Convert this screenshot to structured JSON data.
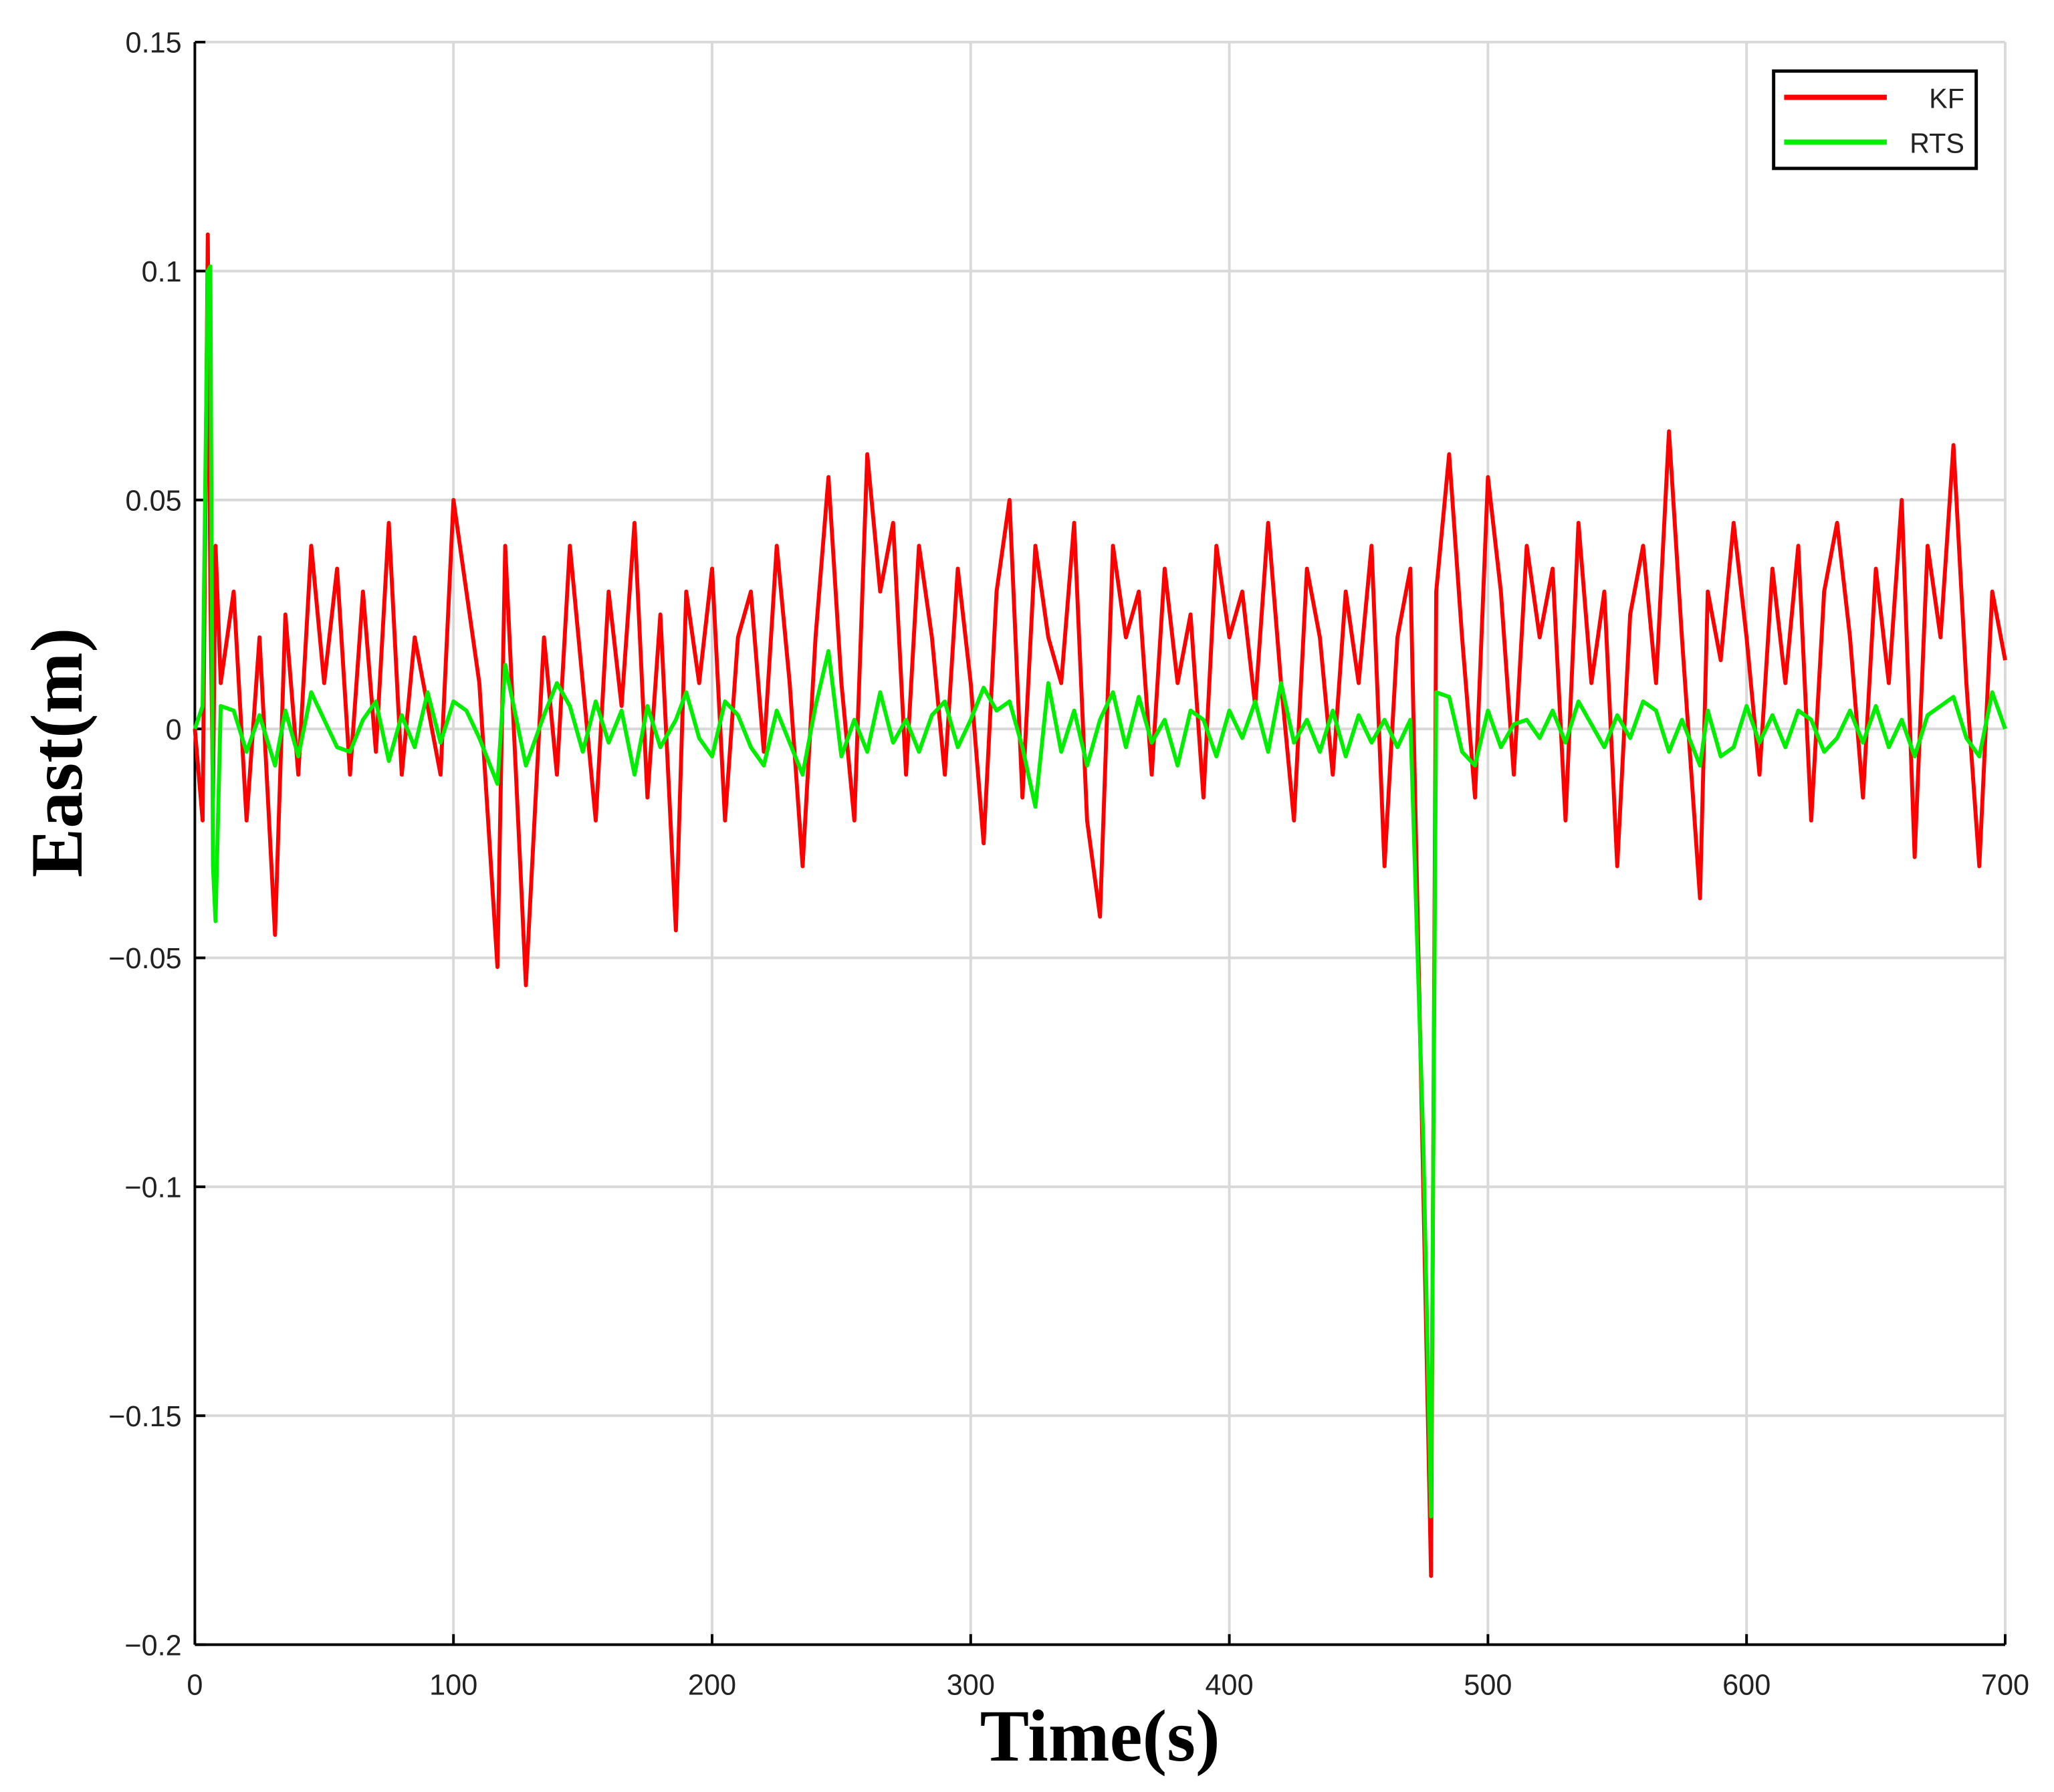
{
  "chart_data": {
    "type": "line",
    "xlabel": "Time(s)",
    "ylabel": "East(m)",
    "x": [
      0,
      3,
      5,
      6,
      7,
      8,
      10,
      15,
      20,
      25,
      31,
      35,
      40,
      45,
      50,
      55,
      60,
      65,
      70,
      75,
      80,
      85,
      90,
      95,
      100,
      105,
      110,
      117,
      120,
      128,
      135,
      140,
      145,
      150,
      155,
      160,
      165,
      170,
      175,
      180,
      186,
      190,
      195,
      200,
      205,
      210,
      215,
      220,
      225,
      230,
      235,
      240,
      245,
      250,
      255,
      260,
      265,
      270,
      275,
      280,
      285,
      290,
      295,
      300,
      305,
      310,
      315,
      320,
      325,
      330,
      335,
      340,
      345,
      350,
      355,
      360,
      365,
      370,
      375,
      380,
      385,
      390,
      395,
      400,
      405,
      410,
      415,
      420,
      425,
      430,
      435,
      440,
      445,
      450,
      455,
      460,
      465,
      470,
      475,
      478,
      480,
      485,
      490,
      495,
      500,
      505,
      510,
      515,
      520,
      525,
      530,
      535,
      540,
      545,
      550,
      555,
      560,
      565,
      570,
      575,
      582,
      585,
      590,
      595,
      600,
      605,
      610,
      615,
      620,
      625,
      630,
      635,
      640,
      645,
      650,
      655,
      660,
      665,
      670,
      675,
      680,
      685,
      690,
      695,
      700
    ],
    "series": [
      {
        "name": "KF",
        "color": "#ff0000",
        "values": [
          0,
          -0.02,
          0.108,
          0.03,
          -0.015,
          0.04,
          0.01,
          0.03,
          -0.02,
          0.02,
          -0.045,
          0.025,
          -0.01,
          0.04,
          0.01,
          0.035,
          -0.01,
          0.03,
          -0.005,
          0.045,
          -0.01,
          0.02,
          0.005,
          -0.01,
          0.05,
          0.03,
          0.01,
          -0.052,
          0.04,
          -0.056,
          0.02,
          -0.01,
          0.04,
          0.01,
          -0.02,
          0.03,
          0.005,
          0.045,
          -0.015,
          0.025,
          -0.044,
          0.03,
          0.01,
          0.035,
          -0.02,
          0.02,
          0.03,
          -0.005,
          0.04,
          0.01,
          -0.03,
          0.02,
          0.055,
          0.01,
          -0.02,
          0.06,
          0.03,
          0.045,
          -0.01,
          0.04,
          0.02,
          -0.01,
          0.035,
          0.01,
          -0.025,
          0.03,
          0.05,
          -0.015,
          0.04,
          0.02,
          0.01,
          0.045,
          -0.02,
          -0.041,
          0.04,
          0.02,
          0.03,
          -0.01,
          0.035,
          0.01,
          0.025,
          -0.015,
          0.04,
          0.02,
          0.03,
          0.005,
          0.045,
          0.01,
          -0.02,
          0.035,
          0.02,
          -0.01,
          0.03,
          0.01,
          0.04,
          -0.03,
          0.02,
          0.035,
          -0.1,
          -0.185,
          0.03,
          0.06,
          0.02,
          -0.015,
          0.055,
          0.03,
          -0.01,
          0.04,
          0.02,
          0.035,
          -0.02,
          0.045,
          0.01,
          0.03,
          -0.03,
          0.025,
          0.04,
          0.01,
          0.065,
          0.02,
          -0.037,
          0.03,
          0.015,
          0.045,
          0.02,
          -0.01,
          0.035,
          0.01,
          0.04,
          -0.02,
          0.03,
          0.045,
          0.02,
          -0.015,
          0.035,
          0.01,
          0.05,
          -0.028,
          0.04,
          0.02,
          0.062,
          0.01,
          -0.03,
          0.03,
          0.015
        ]
      },
      {
        "name": "RTS",
        "color": "#00ee00",
        "values": [
          0,
          0.005,
          0.1,
          0.101,
          -0.03,
          -0.042,
          0.005,
          0.004,
          -0.005,
          0.003,
          -0.008,
          0.004,
          -0.006,
          0.008,
          0.002,
          -0.004,
          -0.005,
          0.002,
          0.006,
          -0.007,
          0.003,
          -0.004,
          0.008,
          -0.003,
          0.006,
          0.004,
          -0.002,
          -0.012,
          0.014,
          -0.008,
          0.003,
          0.01,
          0.005,
          -0.005,
          0.006,
          -0.003,
          0.004,
          -0.01,
          0.005,
          -0.004,
          0.002,
          0.008,
          -0.002,
          -0.006,
          0.006,
          0.003,
          -0.004,
          -0.008,
          0.004,
          -0.003,
          -0.01,
          0.005,
          0.017,
          -0.006,
          0.002,
          -0.005,
          0.008,
          -0.003,
          0.002,
          -0.005,
          0.003,
          0.006,
          -0.004,
          0.002,
          0.009,
          0.004,
          0.006,
          -0.004,
          -0.017,
          0.01,
          -0.005,
          0.004,
          -0.008,
          0.002,
          0.008,
          -0.004,
          0.007,
          -0.003,
          0.002,
          -0.008,
          0.004,
          0.002,
          -0.006,
          0.004,
          -0.002,
          0.006,
          -0.005,
          0.01,
          -0.003,
          0.002,
          -0.005,
          0.004,
          -0.006,
          0.003,
          -0.003,
          0.002,
          -0.004,
          0.002,
          -0.09,
          -0.172,
          0.008,
          0.007,
          -0.005,
          -0.008,
          0.004,
          -0.004,
          0.001,
          0.002,
          -0.002,
          0.004,
          -0.003,
          0.006,
          0.001,
          -0.004,
          0.003,
          -0.002,
          0.006,
          0.004,
          -0.005,
          0.002,
          -0.008,
          0.004,
          -0.006,
          -0.004,
          0.005,
          -0.003,
          0.003,
          -0.004,
          0.004,
          0.002,
          -0.005,
          -0.002,
          0.004,
          -0.003,
          0.005,
          -0.004,
          0.002,
          -0.006,
          0.003,
          0.005,
          0.007,
          -0.002,
          -0.006,
          0.008,
          0
        ]
      }
    ],
    "xlim": [
      0,
      700
    ],
    "xticks": [
      0,
      100,
      200,
      300,
      400,
      500,
      600,
      700
    ],
    "ylim": [
      -0.2,
      0.15
    ],
    "yticks": [
      {
        "value": -0.2,
        "label": "−0.2"
      },
      {
        "value": -0.15,
        "label": "−0.15"
      },
      {
        "value": -0.1,
        "label": "−0.1"
      },
      {
        "value": -0.05,
        "label": "−0.05"
      },
      0,
      0.05,
      0.1,
      0.15
    ],
    "grid": true,
    "legend": "upper right"
  }
}
